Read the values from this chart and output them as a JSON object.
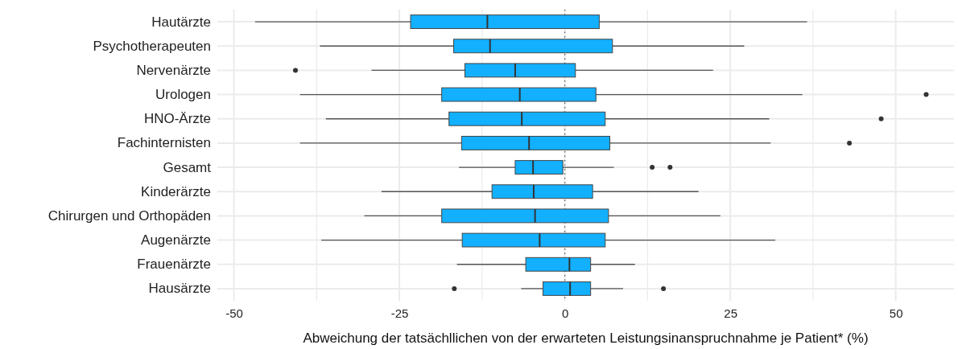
{
  "chart_data": {
    "type": "box",
    "orientation": "horizontal",
    "xlabel": "Abweichung der tatsächllichen von der erwarteten Leistungsinanspruchnahme je Patient* (%)",
    "categories": [
      "Hautärzte",
      "Psychotherapeuten",
      "Nervenärzte",
      "Urologen",
      "HNO-Ärzte",
      "Fachinternisten",
      "Gesamt",
      "Kinderärzte",
      "Chirurgen und Orthopäden",
      "Augenärzte",
      "Frauenärzte",
      "Hausärzte"
    ],
    "series": [
      {
        "color": "#12b0ff",
        "boxes": [
          {
            "low": -46.8,
            "q1": -23.3,
            "median": -11.7,
            "q3": 5.2,
            "high": 36.6
          },
          {
            "low": -37.0,
            "q1": -16.8,
            "median": -11.3,
            "q3": 7.2,
            "high": 27.1
          },
          {
            "low": -29.2,
            "q1": -15.1,
            "median": -7.5,
            "q3": 1.6,
            "high": 22.4,
            "outliers": [
              -40.7
            ]
          },
          {
            "low": -40.0,
            "q1": -18.6,
            "median": -6.8,
            "q3": 4.7,
            "high": 35.9,
            "outliers": [
              54.6
            ]
          },
          {
            "low": -36.1,
            "q1": -17.5,
            "median": -6.5,
            "q3": 6.1,
            "high": 30.9,
            "outliers": [
              47.8
            ]
          },
          {
            "low": -40.0,
            "q1": -15.6,
            "median": -5.4,
            "q3": 6.8,
            "high": 31.1,
            "outliers": [
              43.0
            ]
          },
          {
            "low": -16.0,
            "q1": -7.5,
            "median": -4.8,
            "q3": -0.3,
            "high": 7.4,
            "outliers": [
              13.2,
              15.9
            ]
          },
          {
            "low": -27.7,
            "q1": -11.0,
            "median": -4.7,
            "q3": 4.2,
            "high": 20.2
          },
          {
            "low": -30.3,
            "q1": -18.6,
            "median": -4.5,
            "q3": 6.6,
            "high": 23.5
          },
          {
            "low": -36.8,
            "q1": -15.5,
            "median": -3.8,
            "q3": 6.1,
            "high": 31.8
          },
          {
            "low": -16.3,
            "q1": -5.9,
            "median": 0.7,
            "q3": 3.9,
            "high": 10.6
          },
          {
            "low": -6.6,
            "q1": -3.3,
            "median": 0.8,
            "q3": 3.9,
            "high": 8.8,
            "outliers": [
              -16.7,
              14.9
            ]
          }
        ]
      }
    ],
    "xlim": [
      -52.5,
      58.8
    ],
    "xticks": [
      -50,
      {
        "value": -37.5,
        "label": null
      },
      -25,
      {
        "value": -12.5,
        "label": null
      },
      0,
      {
        "value": 12.5,
        "label": null
      },
      25,
      {
        "value": 37.5,
        "label": null
      },
      50
    ],
    "grid": true,
    "ref_lines": [
      {
        "axis": "x",
        "value": 0,
        "line_style": "dotted",
        "color": "#555555"
      }
    ]
  }
}
